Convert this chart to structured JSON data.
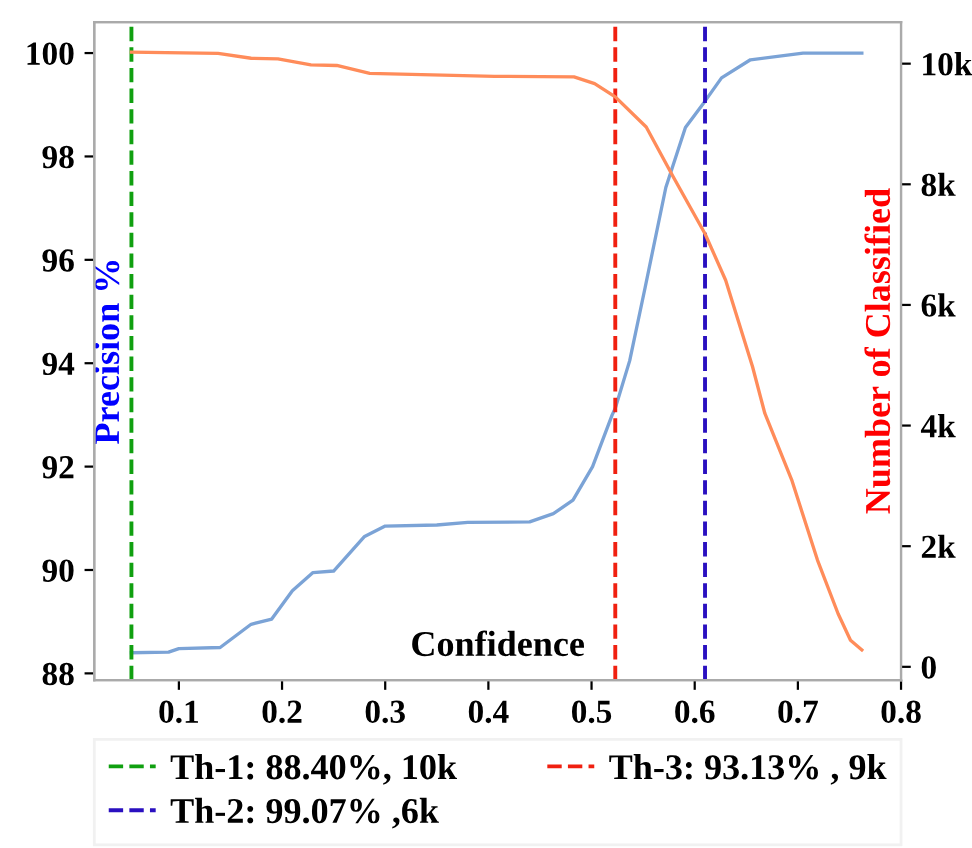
{
  "chart_data": {
    "type": "line",
    "xlabel": "Confidence",
    "ylabel": "Precision %",
    "y2label": "Number of Classified",
    "xlim": [
      0.018,
      0.8
    ],
    "xticks": [
      0.1,
      0.2,
      0.3,
      0.4,
      0.5,
      0.6,
      0.7,
      0.8
    ],
    "ylim": [
      87.87,
      100.6
    ],
    "yticks": [
      88,
      90,
      92,
      94,
      96,
      98,
      100
    ],
    "y2lim": [
      -220,
      10690
    ],
    "y2ticks": [
      {
        "value": 0,
        "label": "0"
      },
      {
        "value": 2000,
        "label": "2k"
      },
      {
        "value": 4000,
        "label": "4k"
      },
      {
        "value": 6000,
        "label": "6k"
      },
      {
        "value": 8000,
        "label": "8k"
      },
      {
        "value": 10000,
        "label": "10k"
      }
    ],
    "series": [
      {
        "color": "#7ba3d6",
        "axis": "y",
        "x": [
          0.054,
          0.09,
          0.1,
          0.14,
          0.17,
          0.19,
          0.21,
          0.23,
          0.25,
          0.28,
          0.3,
          0.35,
          0.38,
          0.44,
          0.463,
          0.482,
          0.501,
          0.52,
          0.523,
          0.537,
          0.552,
          0.572,
          0.591,
          0.61,
          0.626,
          0.654,
          0.686,
          0.705,
          0.762
        ],
        "values": [
          88.4,
          88.41,
          88.48,
          88.5,
          88.95,
          89.05,
          89.6,
          89.95,
          89.98,
          90.65,
          90.85,
          90.87,
          90.92,
          90.93,
          91.09,
          91.35,
          92.0,
          93.0,
          93.13,
          94.05,
          95.47,
          97.4,
          98.56,
          99.07,
          99.52,
          99.87,
          99.95,
          100.0,
          100.0
        ]
      },
      {
        "color": "#ff8c5a",
        "axis": "y2",
        "x": [
          0.054,
          0.138,
          0.17,
          0.196,
          0.228,
          0.253,
          0.285,
          0.406,
          0.483,
          0.503,
          0.523,
          0.553,
          0.579,
          0.61,
          0.63,
          0.656,
          0.668,
          0.694,
          0.719,
          0.739,
          0.751,
          0.762
        ],
        "values": [
          10190,
          10170,
          10090,
          10080,
          9980,
          9970,
          9840,
          9790,
          9780,
          9670,
          9450,
          8950,
          8130,
          7180,
          6410,
          4980,
          4200,
          3100,
          1770,
          880,
          440,
          280
        ]
      }
    ],
    "ref_lines": [
      {
        "axis": "x",
        "value": 0.054,
        "color": "#10a010",
        "line_style": "dashed"
      },
      {
        "axis": "x",
        "value": 0.61,
        "color": "#2a10c0",
        "line_style": "dashed"
      },
      {
        "axis": "x",
        "value": 0.523,
        "color": "#f02010",
        "line_style": "dashed"
      }
    ],
    "annotations": [
      "Th-1: 88.40%, 10k",
      "Th-2: 99.07% ,6k",
      "Th-3: 93.13% , 9k"
    ],
    "grid": false,
    "marker": "none",
    "line_style": "solid"
  }
}
